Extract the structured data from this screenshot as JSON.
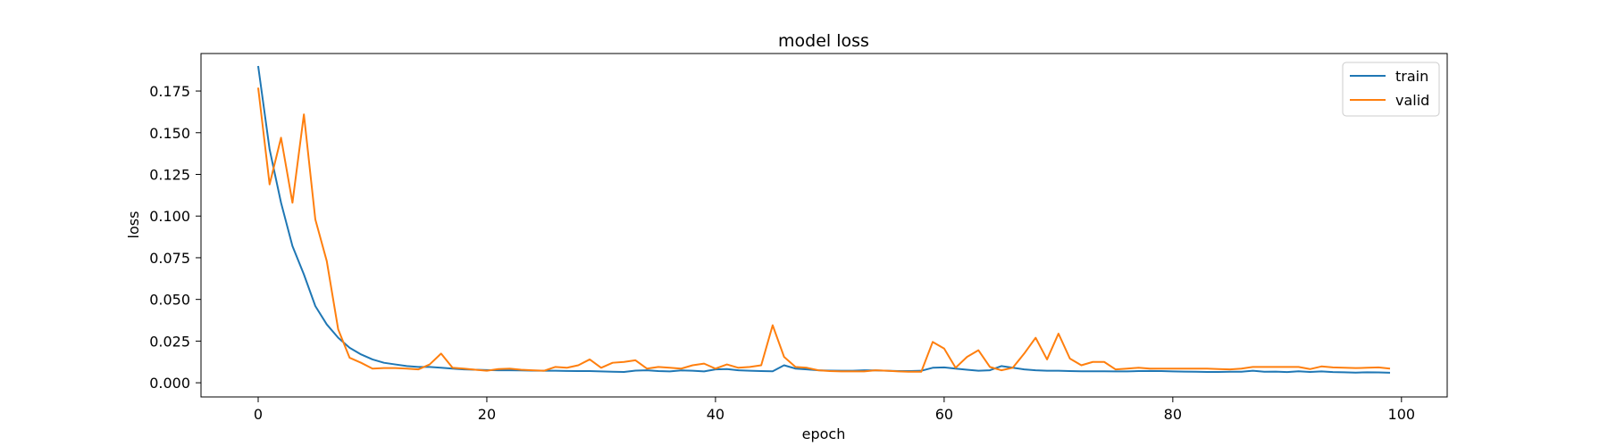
{
  "chart_data": {
    "type": "line",
    "title": "model loss",
    "xlabel": "epoch",
    "ylabel": "loss",
    "xlim": [
      -5,
      104
    ],
    "ylim": [
      -0.0085,
      0.1975
    ],
    "xticks": [
      0,
      20,
      40,
      60,
      80,
      100
    ],
    "yticks": [
      0.0,
      0.025,
      0.05,
      0.075,
      0.1,
      0.125,
      0.15,
      0.175
    ],
    "ytick_labels": [
      "0.000",
      "0.025",
      "0.050",
      "0.075",
      "0.100",
      "0.125",
      "0.150",
      "0.175"
    ],
    "grid": false,
    "legend_position": "top-right",
    "series": [
      {
        "name": "train",
        "color": "#1f77b4",
        "x": [
          0,
          1,
          2,
          3,
          4,
          5,
          6,
          7,
          8,
          9,
          10,
          11,
          12,
          13,
          14,
          15,
          16,
          17,
          18,
          19,
          20,
          21,
          22,
          23,
          24,
          25,
          26,
          27,
          28,
          29,
          30,
          31,
          32,
          33,
          34,
          35,
          36,
          37,
          38,
          39,
          40,
          41,
          42,
          43,
          44,
          45,
          46,
          47,
          48,
          49,
          50,
          51,
          52,
          53,
          54,
          55,
          56,
          57,
          58,
          59,
          60,
          61,
          62,
          63,
          64,
          65,
          66,
          67,
          68,
          69,
          70,
          71,
          72,
          73,
          74,
          75,
          76,
          77,
          78,
          79,
          80,
          81,
          82,
          83,
          84,
          85,
          86,
          87,
          88,
          89,
          90,
          91,
          92,
          93,
          94,
          95,
          96,
          97,
          98,
          99
        ],
        "y": [
          0.19,
          0.14,
          0.108,
          0.082,
          0.065,
          0.046,
          0.035,
          0.027,
          0.021,
          0.017,
          0.014,
          0.012,
          0.011,
          0.01,
          0.0095,
          0.0095,
          0.009,
          0.0085,
          0.008,
          0.0078,
          0.0076,
          0.0075,
          0.0075,
          0.0074,
          0.0073,
          0.0072,
          0.0072,
          0.0071,
          0.007,
          0.007,
          0.0068,
          0.0066,
          0.0065,
          0.0073,
          0.0075,
          0.007,
          0.0068,
          0.0074,
          0.0072,
          0.0068,
          0.008,
          0.0082,
          0.0075,
          0.0072,
          0.007,
          0.0069,
          0.0105,
          0.0085,
          0.008,
          0.0075,
          0.0073,
          0.0072,
          0.0072,
          0.0075,
          0.0074,
          0.0072,
          0.007,
          0.007,
          0.0072,
          0.009,
          0.0092,
          0.0085,
          0.0078,
          0.0072,
          0.0075,
          0.01,
          0.009,
          0.008,
          0.0075,
          0.0072,
          0.0072,
          0.007,
          0.0069,
          0.0069,
          0.0069,
          0.0068,
          0.0068,
          0.007,
          0.0071,
          0.007,
          0.0068,
          0.0067,
          0.0066,
          0.0065,
          0.0065,
          0.0066,
          0.0066,
          0.0072,
          0.0066,
          0.0067,
          0.0064,
          0.0069,
          0.0065,
          0.0068,
          0.0064,
          0.0063,
          0.0061,
          0.0063,
          0.0062,
          0.006
        ]
      },
      {
        "name": "valid",
        "color": "#ff7f0e",
        "x": [
          0,
          1,
          2,
          3,
          4,
          5,
          6,
          7,
          8,
          9,
          10,
          11,
          12,
          13,
          14,
          15,
          16,
          17,
          18,
          19,
          20,
          21,
          22,
          23,
          24,
          25,
          26,
          27,
          28,
          29,
          30,
          31,
          32,
          33,
          34,
          35,
          36,
          37,
          38,
          39,
          40,
          41,
          42,
          43,
          44,
          45,
          46,
          47,
          48,
          49,
          50,
          51,
          52,
          53,
          54,
          55,
          56,
          57,
          58,
          59,
          60,
          61,
          62,
          63,
          64,
          65,
          66,
          67,
          68,
          69,
          70,
          71,
          72,
          73,
          74,
          75,
          76,
          77,
          78,
          79,
          80,
          81,
          82,
          83,
          84,
          85,
          86,
          87,
          88,
          89,
          90,
          91,
          92,
          93,
          94,
          95,
          96,
          97,
          98,
          99
        ],
        "y": [
          0.177,
          0.119,
          0.147,
          0.108,
          0.161,
          0.098,
          0.073,
          0.032,
          0.015,
          0.012,
          0.0085,
          0.0088,
          0.0088,
          0.0085,
          0.008,
          0.011,
          0.0175,
          0.009,
          0.0085,
          0.0078,
          0.0072,
          0.0082,
          0.0085,
          0.0078,
          0.0075,
          0.0072,
          0.0095,
          0.009,
          0.0105,
          0.014,
          0.009,
          0.012,
          0.0125,
          0.0135,
          0.0085,
          0.0095,
          0.009,
          0.0085,
          0.0105,
          0.0115,
          0.0085,
          0.011,
          0.009,
          0.0095,
          0.0105,
          0.0345,
          0.0155,
          0.0095,
          0.009,
          0.0075,
          0.007,
          0.0068,
          0.0068,
          0.0068,
          0.0075,
          0.0072,
          0.0068,
          0.0066,
          0.0066,
          0.0245,
          0.0205,
          0.009,
          0.0155,
          0.0195,
          0.0095,
          0.0075,
          0.009,
          0.0175,
          0.027,
          0.014,
          0.0295,
          0.0145,
          0.0105,
          0.0125,
          0.0125,
          0.008,
          0.0085,
          0.009,
          0.0085,
          0.0085,
          0.0085,
          0.0085,
          0.0085,
          0.0085,
          0.0082,
          0.008,
          0.0085,
          0.0095,
          0.0095,
          0.0095,
          0.0095,
          0.0095,
          0.0082,
          0.0098,
          0.0092,
          0.009,
          0.0088,
          0.009,
          0.0092,
          0.0085
        ]
      }
    ]
  }
}
